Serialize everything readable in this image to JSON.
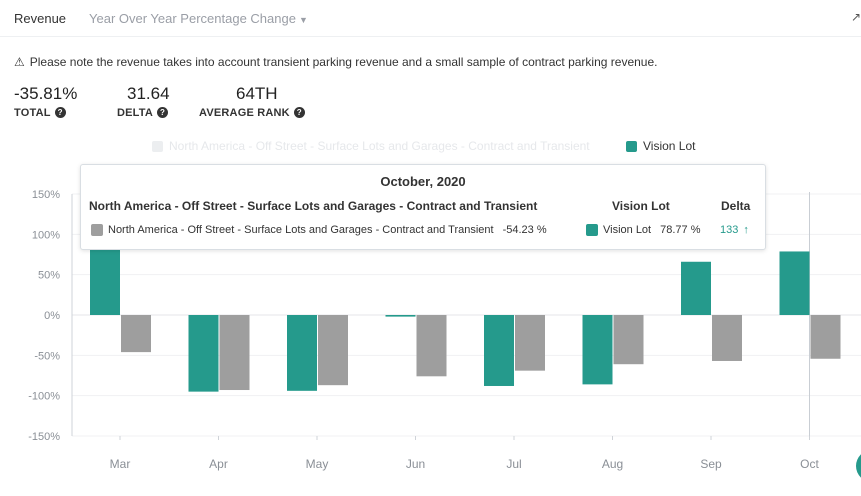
{
  "header": {
    "tab_label": "Revenue",
    "dropdown_label": "Year Over Year Percentage Change",
    "corner_icon": "↗"
  },
  "notice": {
    "icon": "warning-icon",
    "text": "Please note the revenue takes into account transient parking revenue and a small sample of contract parking revenue."
  },
  "stats": [
    {
      "value": "-35.81%",
      "label": "TOTAL"
    },
    {
      "value": "31.64",
      "label": "DELTA"
    },
    {
      "value": "64TH",
      "label": "AVERAGE RANK"
    }
  ],
  "colors": {
    "vision": "#259a8c",
    "market": "#9e9e9e",
    "market_faded": "#eceef0"
  },
  "tooltip": {
    "title": "October, 2020",
    "col_market": "North America - Off Street - Surface Lots and Garages - Contract and Transient",
    "col_vision": "Vision Lot",
    "col_delta": "Delta",
    "market_name": "North America - Off Street - Surface Lots and Garages - Contract and Transient",
    "market_value": "-54.23 %",
    "vision_name": "Vision Lot",
    "vision_value": "78.77 %",
    "delta_value": "133",
    "delta_arrow": "↑"
  },
  "chart_data": {
    "type": "bar",
    "categories": [
      "Mar",
      "Apr",
      "May",
      "Jun",
      "Jul",
      "Aug",
      "Sep",
      "Oct"
    ],
    "series": [
      {
        "name": "Vision Lot",
        "color": "#259a8c",
        "values": [
          100,
          -95,
          -94,
          -2,
          -88,
          -86,
          66,
          78.77
        ]
      },
      {
        "name": "North America - Off Street - Surface Lots and Garages - Contract and Transient",
        "color": "#9e9e9e",
        "values": [
          -46,
          -93,
          -87,
          -76,
          -69,
          -61,
          -57,
          -54.23
        ]
      }
    ],
    "legend": [
      "North America - Off Street - Surface Lots and Garages - Contract and Transient",
      "Vision Lot"
    ],
    "ylim": [
      -150,
      150
    ],
    "yticks": [
      150,
      100,
      50,
      0,
      -50,
      -100,
      -150
    ],
    "ytick_labels": [
      "150%",
      "100%",
      "50%",
      "0%",
      "-50%",
      "-100%",
      "-150%"
    ],
    "highlight_category": "Oct",
    "title": "",
    "xlabel": "",
    "ylabel": ""
  }
}
